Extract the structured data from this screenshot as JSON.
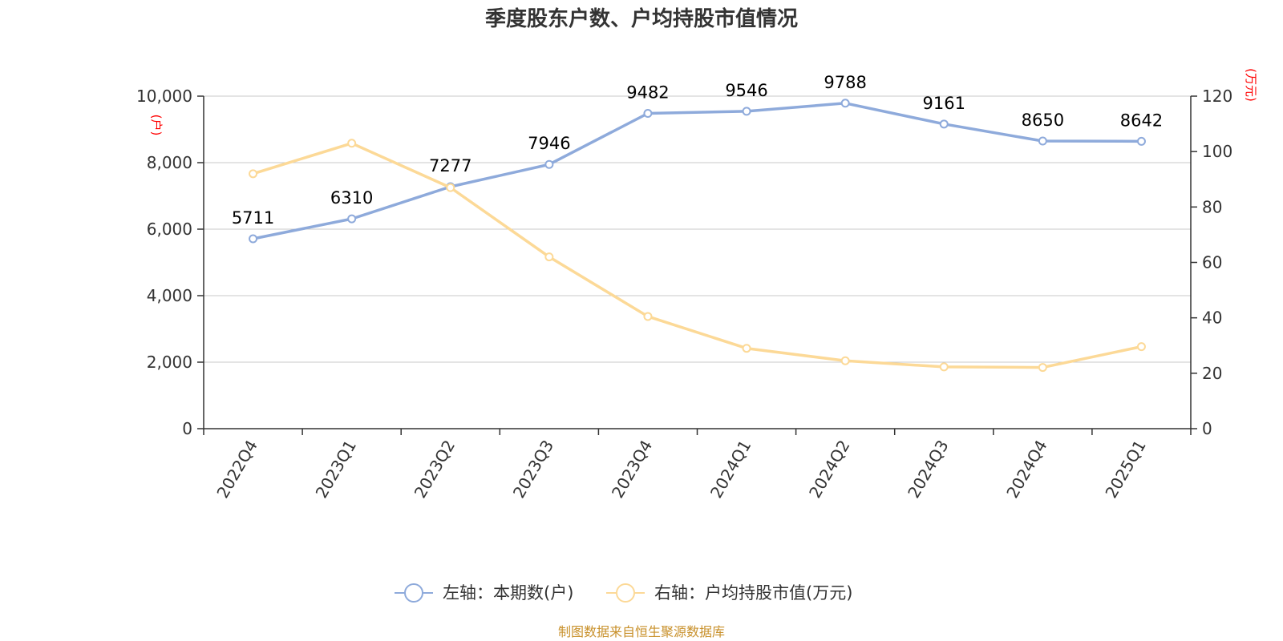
{
  "chart_data": {
    "type": "line",
    "title": "季度股东户数、户均持股市值情况",
    "categories": [
      "2022Q4",
      "2023Q1",
      "2023Q2",
      "2023Q3",
      "2023Q4",
      "2024Q1",
      "2024Q2",
      "2024Q3",
      "2024Q4",
      "2025Q1"
    ],
    "left_axis": {
      "unit": "(户)",
      "ylim": [
        0,
        10000
      ],
      "ticks": [
        0,
        2000,
        4000,
        6000,
        8000,
        10000
      ],
      "tick_labels": [
        "0",
        "2,000",
        "4,000",
        "6,000",
        "8,000",
        "10,000"
      ]
    },
    "right_axis": {
      "unit": "(万元)",
      "ylim": [
        0,
        120
      ],
      "ticks": [
        0,
        20,
        40,
        60,
        80,
        100,
        120
      ],
      "tick_labels": [
        "0",
        "20",
        "40",
        "60",
        "80",
        "100",
        "120"
      ]
    },
    "series": [
      {
        "name": "左轴：本期数(户)",
        "axis": "left",
        "color": "#8eaadb",
        "values": [
          5711,
          6310,
          7277,
          7946,
          9482,
          9546,
          9788,
          9161,
          8650,
          8642
        ],
        "labels": [
          "5711",
          "6310",
          "7277",
          "7946",
          "9482",
          "9546",
          "9788",
          "9161",
          "8650",
          "8642"
        ]
      },
      {
        "name": "右轴：户均持股市值(万元)",
        "axis": "right",
        "color": "#fcd997",
        "values": [
          92,
          103,
          87,
          62,
          40.5,
          29,
          24.5,
          22.3,
          22.1,
          29.6
        ]
      }
    ],
    "grid": true,
    "legend_position": "bottom",
    "source": "制图数据来自恒生聚源数据库"
  }
}
